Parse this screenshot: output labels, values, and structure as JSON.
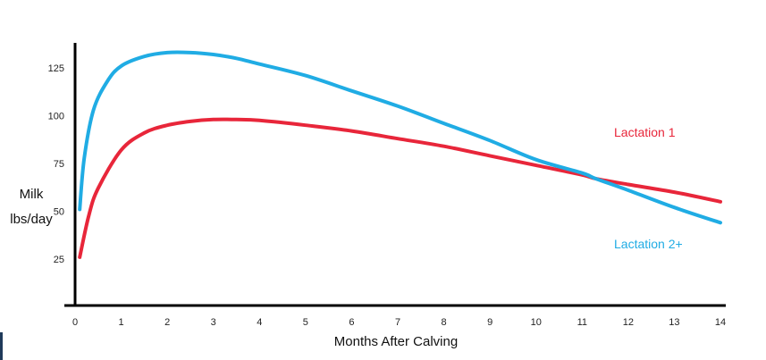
{
  "chart_data": {
    "type": "line",
    "title": "",
    "xlabel": "Months After Calving",
    "ylabel_line1": "Milk",
    "ylabel_line2": "lbs/day",
    "xlim": [
      0,
      14
    ],
    "ylim": [
      0,
      140
    ],
    "x_ticks": [
      0,
      1,
      2,
      3,
      4,
      5,
      6,
      7,
      8,
      9,
      10,
      11,
      12,
      13,
      14
    ],
    "y_ticks": [
      25,
      50,
      75,
      100,
      125
    ],
    "grid": false,
    "legend": "inline labels at right",
    "series": [
      {
        "name": "Lactation 1",
        "color": "#e8263a",
        "x": [
          0.1,
          0.3,
          0.5,
          1.0,
          1.5,
          2.0,
          2.5,
          3.0,
          3.5,
          4.0,
          5.0,
          6.0,
          7.0,
          8.0,
          9.0,
          10.0,
          11.0,
          11.3,
          12.0,
          13.0,
          14.0
        ],
        "y": [
          26,
          48,
          62,
          82,
          91,
          95,
          97,
          98,
          98,
          97.5,
          95,
          92,
          88,
          84,
          79,
          74,
          69,
          67,
          64,
          60,
          55
        ]
      },
      {
        "name": "Lactation 2+",
        "color": "#20ace4",
        "x": [
          0.1,
          0.2,
          0.4,
          0.7,
          1.0,
          1.5,
          2.0,
          2.5,
          3.0,
          3.5,
          4.0,
          5.0,
          6.0,
          7.0,
          8.0,
          9.0,
          10.0,
          11.0,
          11.3,
          12.0,
          13.0,
          14.0
        ],
        "y": [
          51,
          78,
          103,
          118,
          126,
          131,
          133,
          133,
          132,
          130,
          127,
          121,
          113,
          105,
          96,
          87,
          77,
          70,
          67,
          61,
          52,
          44
        ]
      }
    ]
  }
}
